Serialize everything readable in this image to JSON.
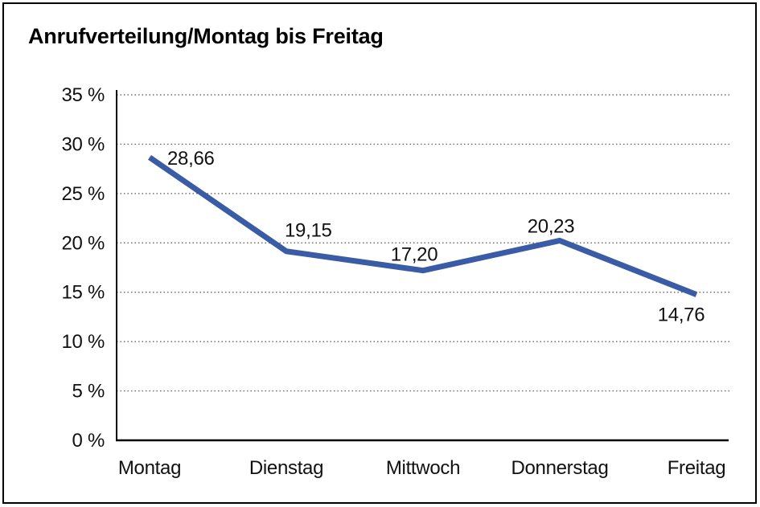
{
  "title": "Anrufverteilung/Montag bis Freitag",
  "chart_data": {
    "type": "line",
    "title": "Anrufverteilung/Montag bis Freitag",
    "categories": [
      "Montag",
      "Dienstag",
      "Mittwoch",
      "Donnerstag",
      "Freitag"
    ],
    "series": [
      {
        "name": "Anrufverteilung",
        "values": [
          28.66,
          19.15,
          17.2,
          20.23,
          14.76
        ],
        "point_labels": [
          "28,66",
          "19,15",
          "17,20",
          "20,23",
          "14,76"
        ]
      }
    ],
    "xlabel": "",
    "ylabel": "",
    "y_ticks": [
      "0 %",
      "5 %",
      "10 %",
      "15 %",
      "20 %",
      "25 %",
      "30 %",
      "35 %"
    ],
    "ylim": [
      0,
      35
    ],
    "y_tick_step": 5,
    "grid": "horizontal-dotted",
    "legend_position": "none",
    "colors": {
      "line": "#3A5BA5",
      "axis": "#000000",
      "gridline": "#555555",
      "text": "#111111",
      "background": "#ffffff",
      "border": "#000000"
    }
  }
}
